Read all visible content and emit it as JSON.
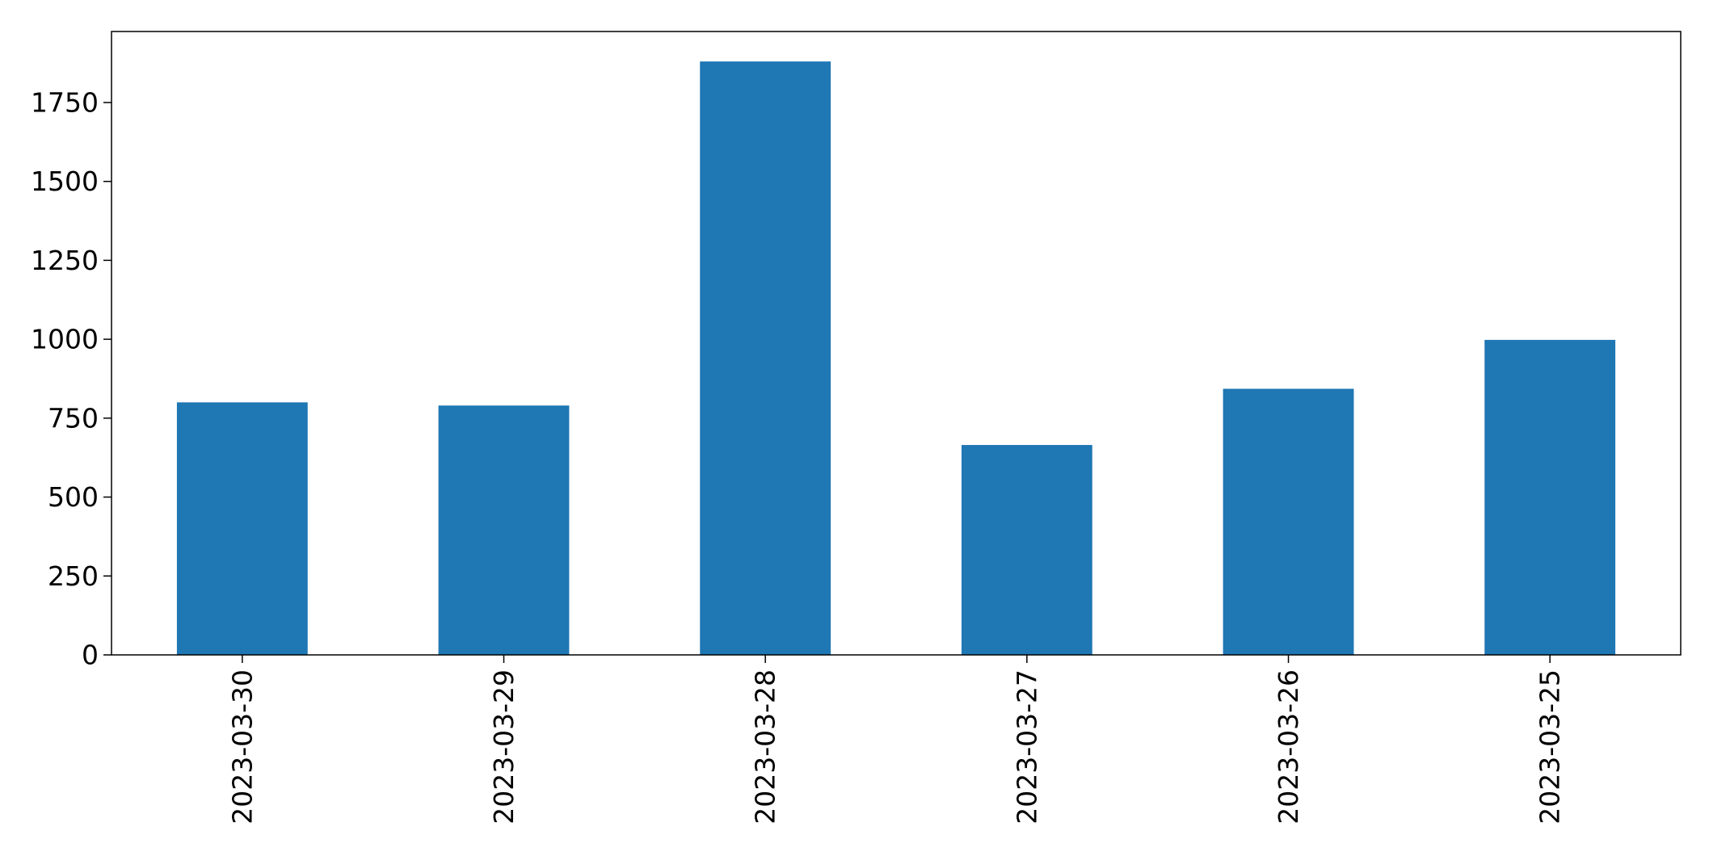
{
  "chart_data": {
    "type": "bar",
    "title": "",
    "xlabel": "",
    "ylabel": "",
    "categories": [
      "2023-03-30",
      "2023-03-29",
      "2023-03-28",
      "2023-03-27",
      "2023-03-26",
      "2023-03-25"
    ],
    "values": [
      800,
      790,
      1880,
      665,
      843,
      998
    ],
    "ylim": [
      0,
      1975
    ],
    "yticks": [
      0,
      250,
      500,
      750,
      1000,
      1250,
      1500,
      1750
    ],
    "ytick_labels": [
      "0",
      "250",
      "500",
      "750",
      "1000",
      "1250",
      "1500",
      "1750"
    ],
    "grid": false,
    "legend": "none",
    "colors": {
      "bar": "#1f77b4",
      "axis": "#000000",
      "background": "#ffffff"
    }
  }
}
